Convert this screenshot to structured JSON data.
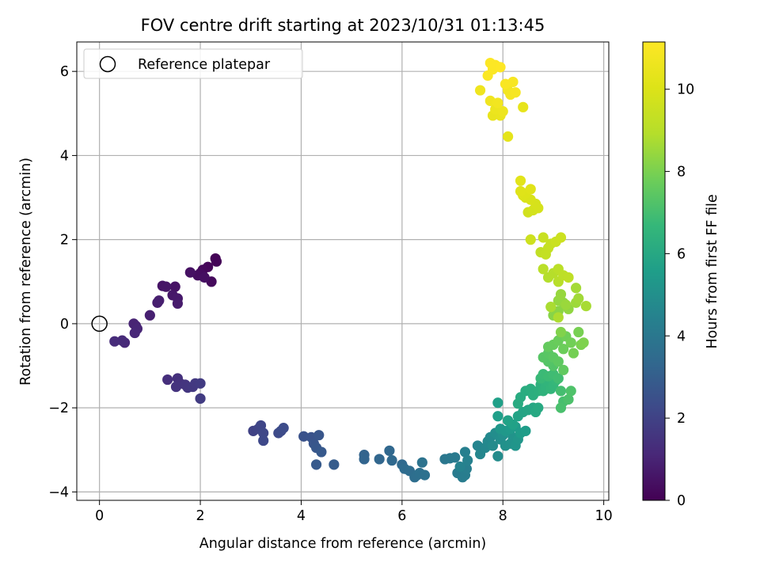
{
  "chart_data": {
    "type": "scatter",
    "title": "FOV centre drift starting at 2023/10/31 01:13:45",
    "xlabel": "Angular distance from reference (arcmin)",
    "ylabel": "Rotation from reference (arcmin)",
    "xlim": [
      -0.45,
      10.1
    ],
    "ylim": [
      -4.2,
      6.7
    ],
    "xticks": [
      0,
      2,
      4,
      6,
      8,
      10
    ],
    "yticks": [
      -4,
      -2,
      0,
      2,
      4,
      6
    ],
    "xtick_labels": [
      "0",
      "2",
      "4",
      "6",
      "8",
      "10"
    ],
    "ytick_labels": [
      "−4",
      "−2",
      "0",
      "2",
      "4",
      "6"
    ],
    "grid": true,
    "legend": {
      "placement": "top-left",
      "entries": [
        "Reference platepar"
      ]
    },
    "reference_point": {
      "x": 0,
      "y": 0
    },
    "colorbar": {
      "label": "Hours from first FF file",
      "colormap": "viridis",
      "range": [
        0,
        11.15
      ],
      "ticks": [
        0,
        2,
        4,
        6,
        8,
        10
      ],
      "tick_labels": [
        "0",
        "2",
        "4",
        "6",
        "8",
        "10"
      ]
    },
    "points": [
      [
        2.3,
        1.55,
        0.05
      ],
      [
        2.32,
        1.48,
        0.1
      ],
      [
        2.15,
        1.35,
        0.15
      ],
      [
        2.05,
        1.28,
        0.2
      ],
      [
        2.22,
        1.0,
        0.25
      ],
      [
        2.0,
        1.2,
        0.3
      ],
      [
        1.95,
        1.15,
        0.35
      ],
      [
        2.08,
        1.1,
        0.4
      ],
      [
        1.8,
        1.22,
        0.45
      ],
      [
        1.5,
        0.88,
        0.5
      ],
      [
        1.25,
        0.9,
        0.55
      ],
      [
        1.32,
        0.88,
        0.6
      ],
      [
        1.45,
        0.68,
        0.65
      ],
      [
        1.55,
        0.6,
        0.7
      ],
      [
        1.55,
        0.48,
        0.75
      ],
      [
        1.15,
        0.5,
        0.8
      ],
      [
        1.18,
        0.55,
        0.85
      ],
      [
        1.0,
        0.2,
        0.9
      ],
      [
        0.72,
        -0.05,
        0.95
      ],
      [
        0.68,
        0.0,
        1.0
      ],
      [
        0.75,
        -0.12,
        1.05
      ],
      [
        0.7,
        -0.22,
        1.1
      ],
      [
        0.5,
        -0.45,
        1.15
      ],
      [
        0.45,
        -0.4,
        1.2
      ],
      [
        0.3,
        -0.42,
        1.25
      ],
      [
        1.35,
        -1.33,
        1.35
      ],
      [
        1.55,
        -1.3,
        1.4
      ],
      [
        1.6,
        -1.42,
        1.45
      ],
      [
        1.52,
        -1.5,
        1.5
      ],
      [
        1.7,
        -1.45,
        1.55
      ],
      [
        1.75,
        -1.52,
        1.6
      ],
      [
        1.85,
        -1.5,
        1.65
      ],
      [
        1.9,
        -1.42,
        1.7
      ],
      [
        2.0,
        -1.42,
        1.75
      ],
      [
        2.0,
        -1.78,
        1.8
      ],
      [
        3.05,
        -2.55,
        2.0
      ],
      [
        3.15,
        -2.5,
        2.05
      ],
      [
        3.2,
        -2.42,
        2.1
      ],
      [
        3.25,
        -2.6,
        2.15
      ],
      [
        3.25,
        -2.78,
        2.2
      ],
      [
        3.55,
        -2.6,
        2.25
      ],
      [
        3.6,
        -2.55,
        2.3
      ],
      [
        3.65,
        -2.48,
        2.35
      ],
      [
        4.05,
        -2.68,
        2.55
      ],
      [
        4.2,
        -2.7,
        2.6
      ],
      [
        4.25,
        -2.85,
        2.65
      ],
      [
        4.35,
        -2.65,
        2.7
      ],
      [
        4.3,
        -2.95,
        2.75
      ],
      [
        4.4,
        -3.05,
        2.8
      ],
      [
        4.3,
        -3.35,
        2.85
      ],
      [
        4.65,
        -3.35,
        2.9
      ],
      [
        5.25,
        -3.12,
        3.2
      ],
      [
        5.25,
        -3.22,
        3.25
      ],
      [
        5.55,
        -3.22,
        3.3
      ],
      [
        5.75,
        -3.02,
        3.35
      ],
      [
        5.8,
        -3.25,
        3.4
      ],
      [
        6.0,
        -3.35,
        3.45
      ],
      [
        6.05,
        -3.45,
        3.5
      ],
      [
        6.15,
        -3.5,
        3.55
      ],
      [
        6.25,
        -3.65,
        3.6
      ],
      [
        6.3,
        -3.6,
        3.65
      ],
      [
        6.35,
        -3.55,
        3.7
      ],
      [
        6.45,
        -3.6,
        3.75
      ],
      [
        6.4,
        -3.3,
        3.8
      ],
      [
        6.85,
        -3.22,
        4.0
      ],
      [
        6.95,
        -3.2,
        4.05
      ],
      [
        7.05,
        -3.18,
        4.1
      ],
      [
        7.1,
        -3.55,
        4.15
      ],
      [
        7.2,
        -3.65,
        4.2
      ],
      [
        7.25,
        -3.6,
        4.25
      ],
      [
        7.28,
        -3.45,
        4.3
      ],
      [
        7.25,
        -3.05,
        4.35
      ],
      [
        7.3,
        -3.25,
        4.4
      ],
      [
        7.15,
        -3.4,
        4.45
      ],
      [
        7.5,
        -2.9,
        4.55
      ],
      [
        7.55,
        -3.1,
        4.6
      ],
      [
        7.65,
        -2.95,
        4.65
      ],
      [
        7.7,
        -2.8,
        4.7
      ],
      [
        7.75,
        -2.7,
        4.75
      ],
      [
        7.8,
        -2.9,
        4.8
      ],
      [
        7.9,
        -3.15,
        4.85
      ],
      [
        7.85,
        -2.6,
        4.9
      ],
      [
        7.95,
        -2.75,
        4.95
      ],
      [
        8.0,
        -2.65,
        5.0
      ],
      [
        8.05,
        -2.9,
        5.05
      ],
      [
        8.15,
        -2.85,
        5.1
      ],
      [
        8.2,
        -2.7,
        5.15
      ],
      [
        8.25,
        -2.9,
        5.2
      ],
      [
        8.3,
        -2.75,
        5.25
      ],
      [
        7.95,
        -2.5,
        5.3
      ],
      [
        8.05,
        -2.55,
        5.35
      ],
      [
        8.15,
        -2.5,
        5.4
      ],
      [
        8.25,
        -2.45,
        5.45
      ],
      [
        8.35,
        -2.6,
        5.5
      ],
      [
        8.45,
        -2.55,
        5.55
      ],
      [
        7.9,
        -2.2,
        5.6
      ],
      [
        7.9,
        -1.88,
        5.65
      ],
      [
        8.2,
        -2.4,
        5.7
      ],
      [
        8.1,
        -2.3,
        5.75
      ],
      [
        8.3,
        -2.2,
        5.8
      ],
      [
        8.4,
        -2.1,
        5.85
      ],
      [
        8.5,
        -2.05,
        5.9
      ],
      [
        8.6,
        -2.0,
        5.95
      ],
      [
        8.65,
        -2.1,
        6.0
      ],
      [
        8.7,
        -2.0,
        6.05
      ],
      [
        8.3,
        -1.9,
        6.1
      ],
      [
        8.35,
        -1.75,
        6.15
      ],
      [
        8.45,
        -1.6,
        6.2
      ],
      [
        8.55,
        -1.55,
        6.25
      ],
      [
        8.6,
        -1.7,
        6.3
      ],
      [
        8.7,
        -1.6,
        6.35
      ],
      [
        8.75,
        -1.45,
        6.4
      ],
      [
        8.8,
        -1.6,
        6.45
      ],
      [
        8.85,
        -1.5,
        6.5
      ],
      [
        8.9,
        -1.4,
        6.55
      ],
      [
        8.95,
        -1.55,
        6.6
      ],
      [
        9.0,
        -1.45,
        6.65
      ],
      [
        9.05,
        -1.35,
        6.7
      ],
      [
        8.75,
        -1.3,
        6.75
      ],
      [
        8.8,
        -1.2,
        6.8
      ],
      [
        8.9,
        -1.25,
        6.85
      ],
      [
        9.0,
        -1.2,
        6.9
      ],
      [
        9.1,
        -1.3,
        6.95
      ],
      [
        9.15,
        -1.6,
        7.0
      ],
      [
        9.2,
        -1.85,
        7.05
      ],
      [
        9.15,
        -2.0,
        7.1
      ],
      [
        9.3,
        -1.8,
        7.15
      ],
      [
        9.35,
        -1.6,
        7.2
      ],
      [
        9.0,
        -1.0,
        7.25
      ],
      [
        8.9,
        -0.9,
        7.3
      ],
      [
        8.8,
        -0.8,
        7.35
      ],
      [
        8.9,
        -0.7,
        7.4
      ],
      [
        9.0,
        -0.8,
        7.45
      ],
      [
        9.1,
        -0.9,
        7.5
      ],
      [
        9.2,
        -1.1,
        7.55
      ],
      [
        8.9,
        -0.55,
        7.6
      ],
      [
        9.0,
        -0.5,
        7.65
      ],
      [
        9.1,
        -0.4,
        7.7
      ],
      [
        9.2,
        -0.6,
        7.75
      ],
      [
        9.25,
        -0.3,
        7.8
      ],
      [
        9.35,
        -0.45,
        7.85
      ],
      [
        9.4,
        -0.7,
        7.9
      ],
      [
        9.5,
        -0.2,
        7.95
      ],
      [
        9.55,
        -0.5,
        8.0
      ],
      [
        9.6,
        -0.45,
        8.05
      ],
      [
        9.15,
        -0.2,
        8.1
      ],
      [
        9.0,
        0.2,
        8.2
      ],
      [
        9.1,
        0.3,
        8.25
      ],
      [
        9.2,
        0.5,
        8.3
      ],
      [
        9.3,
        0.35,
        8.35
      ],
      [
        9.1,
        0.55,
        8.4
      ],
      [
        9.15,
        0.7,
        8.45
      ],
      [
        9.25,
        0.45,
        8.5
      ],
      [
        9.45,
        0.5,
        8.55
      ],
      [
        9.5,
        0.6,
        8.6
      ],
      [
        9.45,
        0.85,
        8.65
      ],
      [
        9.65,
        0.42,
        8.7
      ],
      [
        8.95,
        0.4,
        8.75
      ],
      [
        9.1,
        0.15,
        8.8
      ],
      [
        8.9,
        1.1,
        8.9
      ],
      [
        9.0,
        1.2,
        8.95
      ],
      [
        9.1,
        1.0,
        9.0
      ],
      [
        8.8,
        1.3,
        9.05
      ],
      [
        9.1,
        1.3,
        9.1
      ],
      [
        9.2,
        1.15,
        9.15
      ],
      [
        9.3,
        1.1,
        9.2
      ],
      [
        8.75,
        1.7,
        9.25
      ],
      [
        8.85,
        1.65,
        9.3
      ],
      [
        8.9,
        1.8,
        9.35
      ],
      [
        8.95,
        1.9,
        9.4
      ],
      [
        8.8,
        2.05,
        9.45
      ],
      [
        9.05,
        1.95,
        9.5
      ],
      [
        9.15,
        2.05,
        9.55
      ],
      [
        8.55,
        2.0,
        9.6
      ],
      [
        8.5,
        2.65,
        9.7
      ],
      [
        8.6,
        2.7,
        9.75
      ],
      [
        8.7,
        2.75,
        9.8
      ],
      [
        8.65,
        2.85,
        9.85
      ],
      [
        8.55,
        2.95,
        9.9
      ],
      [
        8.45,
        3.0,
        9.95
      ],
      [
        8.4,
        3.05,
        10.0
      ],
      [
        8.45,
        3.1,
        10.05
      ],
      [
        8.35,
        3.15,
        10.1
      ],
      [
        8.55,
        3.2,
        10.15
      ],
      [
        8.35,
        3.4,
        10.2
      ],
      [
        8.1,
        4.45,
        10.3
      ],
      [
        8.4,
        5.15,
        10.4
      ],
      [
        7.8,
        4.95,
        10.45
      ],
      [
        7.95,
        4.95,
        10.5
      ],
      [
        7.85,
        5.1,
        10.55
      ],
      [
        8.0,
        5.05,
        10.6
      ],
      [
        7.55,
        5.55,
        10.65
      ],
      [
        7.75,
        5.3,
        10.7
      ],
      [
        7.9,
        5.25,
        10.75
      ],
      [
        8.1,
        5.55,
        10.8
      ],
      [
        8.15,
        5.45,
        10.85
      ],
      [
        8.25,
        5.5,
        10.9
      ],
      [
        8.2,
        5.75,
        10.95
      ],
      [
        8.05,
        5.7,
        11.0
      ],
      [
        7.7,
        5.9,
        11.05
      ],
      [
        7.8,
        6.05,
        11.08
      ],
      [
        7.85,
        6.15,
        11.1
      ],
      [
        7.75,
        6.2,
        11.12
      ],
      [
        7.95,
        6.1,
        11.15
      ]
    ]
  }
}
